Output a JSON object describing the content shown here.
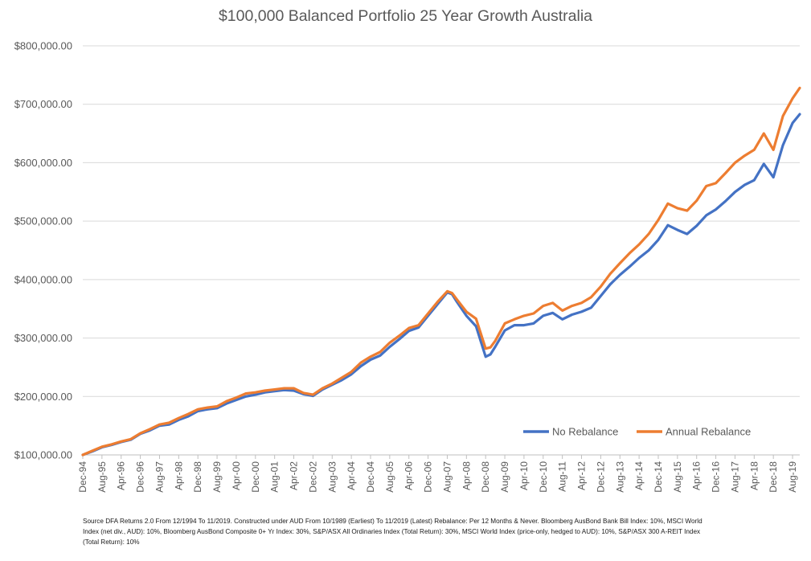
{
  "chart_data": {
    "type": "line",
    "title": "$100,000 Balanced Portfolio 25 Year Growth Australia",
    "xlabel": "",
    "ylabel": "",
    "ylim": [
      100000,
      800000
    ],
    "y_ticks": [
      "$100,000.00",
      "$200,000.00",
      "$300,000.00",
      "$400,000.00",
      "$500,000.00",
      "$600,000.00",
      "$700,000.00",
      "$800,000.00"
    ],
    "x_ticks": [
      "Dec-94",
      "Aug-95",
      "Apr-96",
      "Dec-96",
      "Aug-97",
      "Apr-98",
      "Dec-98",
      "Aug-99",
      "Apr-00",
      "Dec-00",
      "Aug-01",
      "Apr-02",
      "Dec-02",
      "Aug-03",
      "Apr-04",
      "Dec-04",
      "Aug-05",
      "Apr-06",
      "Dec-06",
      "Aug-07",
      "Apr-08",
      "Dec-08",
      "Aug-09",
      "Apr-10",
      "Dec-10",
      "Aug-11",
      "Apr-12",
      "Dec-12",
      "Aug-13",
      "Apr-14",
      "Dec-14",
      "Aug-15",
      "Apr-16",
      "Dec-16",
      "Aug-17",
      "Apr-18",
      "Dec-18",
      "Aug-19"
    ],
    "grid": true,
    "legend_position": "bottom-right",
    "series": [
      {
        "name": "No Rebalance",
        "color": "#4472c4",
        "x": [
          "Dec-94",
          "Apr-95",
          "Aug-95",
          "Dec-95",
          "Apr-96",
          "Aug-96",
          "Dec-96",
          "Apr-97",
          "Aug-97",
          "Dec-97",
          "Apr-98",
          "Aug-98",
          "Dec-98",
          "Apr-99",
          "Aug-99",
          "Dec-99",
          "Apr-00",
          "Aug-00",
          "Dec-00",
          "Apr-01",
          "Aug-01",
          "Dec-01",
          "Apr-02",
          "Aug-02",
          "Dec-02",
          "Apr-03",
          "Aug-03",
          "Dec-03",
          "Apr-04",
          "Aug-04",
          "Dec-04",
          "Apr-05",
          "Aug-05",
          "Dec-05",
          "Apr-06",
          "Aug-06",
          "Dec-06",
          "Apr-07",
          "Aug-07",
          "Oct-07",
          "Dec-07",
          "Apr-08",
          "Aug-08",
          "Dec-08",
          "Feb-09",
          "Apr-09",
          "Aug-09",
          "Dec-09",
          "Apr-10",
          "Aug-10",
          "Dec-10",
          "Apr-11",
          "Aug-11",
          "Dec-11",
          "Apr-12",
          "Aug-12",
          "Dec-12",
          "Apr-13",
          "Aug-13",
          "Dec-13",
          "Apr-14",
          "Aug-14",
          "Dec-14",
          "Apr-15",
          "Aug-15",
          "Dec-15",
          "Apr-16",
          "Aug-16",
          "Dec-16",
          "Apr-17",
          "Aug-17",
          "Dec-17",
          "Apr-18",
          "Aug-18",
          "Dec-18",
          "Apr-19",
          "Aug-19",
          "Nov-19"
        ],
        "values": [
          100000,
          106000,
          113000,
          117000,
          122000,
          126000,
          136000,
          142000,
          150000,
          152000,
          160000,
          166000,
          175000,
          178000,
          180000,
          188000,
          194000,
          200000,
          203000,
          207000,
          209000,
          211000,
          210000,
          204000,
          201000,
          212000,
          220000,
          228000,
          238000,
          252000,
          263000,
          270000,
          285000,
          298000,
          312000,
          318000,
          338000,
          358000,
          378000,
          375000,
          362000,
          338000,
          320000,
          268000,
          272000,
          285000,
          313000,
          322000,
          322000,
          325000,
          338000,
          343000,
          332000,
          340000,
          345000,
          352000,
          372000,
          392000,
          408000,
          422000,
          437000,
          450000,
          468000,
          493000,
          485000,
          478000,
          492000,
          510000,
          520000,
          534000,
          550000,
          562000,
          570000,
          598000,
          575000,
          630000,
          668000,
          683000
        ]
      },
      {
        "name": "Annual Rebalance",
        "color": "#ed7d31",
        "x": [
          "Dec-94",
          "Apr-95",
          "Aug-95",
          "Dec-95",
          "Apr-96",
          "Aug-96",
          "Dec-96",
          "Apr-97",
          "Aug-97",
          "Dec-97",
          "Apr-98",
          "Aug-98",
          "Dec-98",
          "Apr-99",
          "Aug-99",
          "Dec-99",
          "Apr-00",
          "Aug-00",
          "Dec-00",
          "Apr-01",
          "Aug-01",
          "Dec-01",
          "Apr-02",
          "Aug-02",
          "Dec-02",
          "Apr-03",
          "Aug-03",
          "Dec-03",
          "Apr-04",
          "Aug-04",
          "Dec-04",
          "Apr-05",
          "Aug-05",
          "Dec-05",
          "Apr-06",
          "Aug-06",
          "Dec-06",
          "Apr-07",
          "Aug-07",
          "Oct-07",
          "Dec-07",
          "Apr-08",
          "Aug-08",
          "Dec-08",
          "Feb-09",
          "Apr-09",
          "Aug-09",
          "Dec-09",
          "Apr-10",
          "Aug-10",
          "Dec-10",
          "Apr-11",
          "Aug-11",
          "Dec-11",
          "Apr-12",
          "Aug-12",
          "Dec-12",
          "Apr-13",
          "Aug-13",
          "Dec-13",
          "Apr-14",
          "Aug-14",
          "Dec-14",
          "Apr-15",
          "Aug-15",
          "Dec-15",
          "Apr-16",
          "Aug-16",
          "Dec-16",
          "Apr-17",
          "Aug-17",
          "Dec-17",
          "Apr-18",
          "Aug-18",
          "Dec-18",
          "Apr-19",
          "Aug-19",
          "Nov-19"
        ],
        "values": [
          100000,
          107000,
          114000,
          118000,
          123000,
          127000,
          137000,
          144000,
          152000,
          155000,
          163000,
          170000,
          178000,
          181000,
          183000,
          192000,
          198000,
          205000,
          207000,
          210000,
          212000,
          214000,
          214000,
          206000,
          203000,
          214000,
          222000,
          232000,
          242000,
          258000,
          268000,
          276000,
          292000,
          304000,
          317000,
          322000,
          342000,
          362000,
          380000,
          377000,
          366000,
          345000,
          333000,
          282000,
          284000,
          295000,
          325000,
          332000,
          338000,
          342000,
          355000,
          360000,
          347000,
          355000,
          360000,
          370000,
          388000,
          410000,
          428000,
          445000,
          460000,
          478000,
          502000,
          530000,
          522000,
          518000,
          535000,
          560000,
          565000,
          582000,
          600000,
          612000,
          622000,
          650000,
          622000,
          680000,
          710000,
          728000
        ]
      }
    ]
  },
  "source_note": "Source DFA Returns 2.0 From 12/1994 To 11/2019. Constructed under AUD From 10/1989 (Earliest) To 11/2019 (Latest) Rebalance: Per 12 Months & Never. Bloomberg AusBond Bank Bill Index: 10%, MSCI World Index (net div., AUD): 10%, Bloomberg AusBond Composite 0+ Yr Index: 30%, S&P/ASX All Ordinaries Index (Total Return): 30%, MSCI World Index (price-only, hedged to AUD): 10%, S&P/ASX 300 A-REIT Index (Total Return): 10%"
}
